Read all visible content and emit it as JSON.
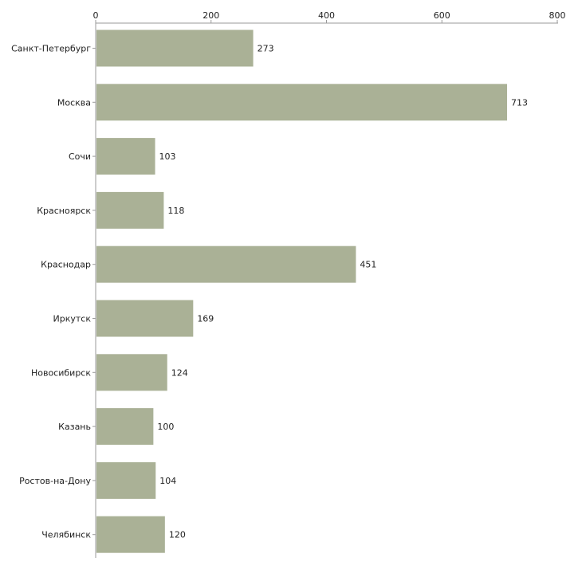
{
  "chart_data": {
    "type": "bar",
    "orientation": "horizontal",
    "title": "",
    "xlabel": "",
    "ylabel": "",
    "categories": [
      "Санкт-Петербург",
      "Москва",
      "Сочи",
      "Красноярск",
      "Краснодар",
      "Иркутск",
      "Новосибирск",
      "Казань",
      "Ростов-на-Дону",
      "Челябинск"
    ],
    "values": [
      273,
      713,
      103,
      118,
      451,
      169,
      124,
      100,
      104,
      120
    ],
    "value_labels": [
      "273",
      "713",
      "103",
      "118",
      "451",
      "169",
      "124",
      "100",
      "104",
      "120"
    ],
    "xlim": [
      0,
      800
    ],
    "x_ticks": [
      0,
      200,
      400,
      600,
      800
    ],
    "x_tick_labels": [
      "0",
      "200",
      "400",
      "600",
      "800"
    ],
    "x_axis_position": "top",
    "grid": false,
    "legend": false,
    "bar_color": "#aab196"
  }
}
